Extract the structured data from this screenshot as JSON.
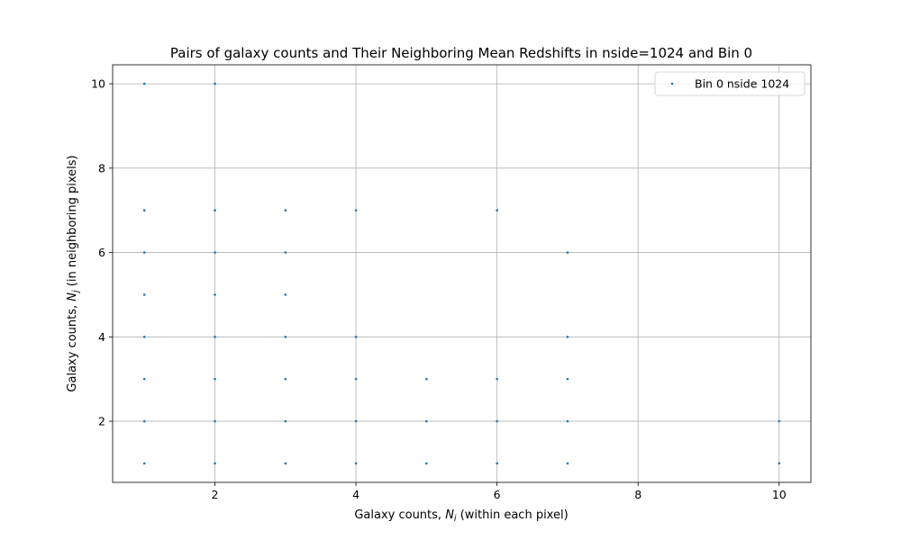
{
  "chart_data": {
    "type": "scatter",
    "title": "Pairs of galaxy counts and Their Neighboring Mean Redshifts in nside=1024 and Bin 0",
    "xlabel_pre": "Galaxy counts, ",
    "xlabel_var": "N",
    "xlabel_sub": "i",
    "xlabel_post": " (within each pixel)",
    "ylabel_pre": "Galaxy counts, ",
    "ylabel_var": "N",
    "ylabel_sub": "j",
    "ylabel_post": " (in neighboring pixels)",
    "xlim": [
      0.55,
      10.45
    ],
    "ylim": [
      0.55,
      10.45
    ],
    "xticks": [
      2,
      4,
      6,
      8,
      10
    ],
    "yticks": [
      2,
      4,
      6,
      8,
      10
    ],
    "grid": true,
    "legend_position": "top-right",
    "series": [
      {
        "name": "Bin 0 nside 1024",
        "color": "#1f77b4",
        "points": [
          {
            "x": 1,
            "y": 1
          },
          {
            "x": 1,
            "y": 2
          },
          {
            "x": 1,
            "y": 3
          },
          {
            "x": 1,
            "y": 4
          },
          {
            "x": 1,
            "y": 5
          },
          {
            "x": 1,
            "y": 6
          },
          {
            "x": 1,
            "y": 7
          },
          {
            "x": 1,
            "y": 10
          },
          {
            "x": 2,
            "y": 1
          },
          {
            "x": 2,
            "y": 2
          },
          {
            "x": 2,
            "y": 3
          },
          {
            "x": 2,
            "y": 4
          },
          {
            "x": 2,
            "y": 5
          },
          {
            "x": 2,
            "y": 6
          },
          {
            "x": 2,
            "y": 7
          },
          {
            "x": 2,
            "y": 10
          },
          {
            "x": 3,
            "y": 1
          },
          {
            "x": 3,
            "y": 2
          },
          {
            "x": 3,
            "y": 3
          },
          {
            "x": 3,
            "y": 4
          },
          {
            "x": 3,
            "y": 5
          },
          {
            "x": 3,
            "y": 6
          },
          {
            "x": 3,
            "y": 7
          },
          {
            "x": 4,
            "y": 1
          },
          {
            "x": 4,
            "y": 2
          },
          {
            "x": 4,
            "y": 3
          },
          {
            "x": 4,
            "y": 4
          },
          {
            "x": 4,
            "y": 7
          },
          {
            "x": 5,
            "y": 1
          },
          {
            "x": 5,
            "y": 2
          },
          {
            "x": 5,
            "y": 3
          },
          {
            "x": 6,
            "y": 1
          },
          {
            "x": 6,
            "y": 2
          },
          {
            "x": 6,
            "y": 3
          },
          {
            "x": 6,
            "y": 7
          },
          {
            "x": 7,
            "y": 1
          },
          {
            "x": 7,
            "y": 2
          },
          {
            "x": 7,
            "y": 3
          },
          {
            "x": 7,
            "y": 4
          },
          {
            "x": 7,
            "y": 6
          },
          {
            "x": 10,
            "y": 1
          },
          {
            "x": 10,
            "y": 2
          }
        ]
      }
    ]
  }
}
